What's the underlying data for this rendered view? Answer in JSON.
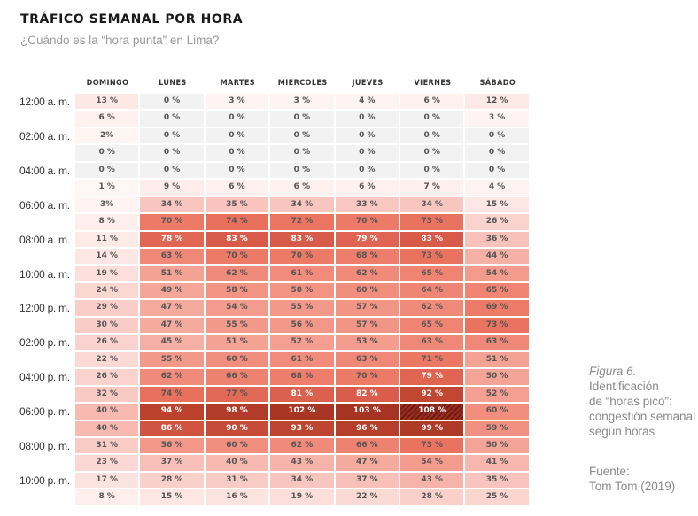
{
  "chart_data": {
    "type": "heatmap",
    "title": "TRÁFICO SEMANAL POR HORA",
    "subtitle": "¿Cuándo es la “hora punta” en Lima?",
    "unit": "%",
    "columns": [
      "DOMINGO",
      "LUNES",
      "MARTES",
      "MIÉRCOLES",
      "JUEVES",
      "VIERNES",
      "SÁBADO"
    ],
    "row_labels": [
      "12:00 a. m.",
      "",
      "02:00 a. m.",
      "",
      "04:00 a. m.",
      "",
      "06:00 a. m.",
      "",
      "08:00 a. m.",
      "",
      "10:00 a. m.",
      "",
      "12:00 p. m.",
      "",
      "02:00 p. m.",
      "",
      "04:00 p. m.",
      "",
      "06:00 p. m.",
      "",
      "08:00 p. m.",
      "",
      "10:00 p. m.",
      ""
    ],
    "hours": [
      0,
      1,
      2,
      3,
      4,
      5,
      6,
      7,
      8,
      9,
      10,
      11,
      12,
      13,
      14,
      15,
      16,
      17,
      18,
      19,
      20,
      21,
      22,
      23
    ],
    "values": [
      [
        13,
        0,
        3,
        3,
        4,
        6,
        12
      ],
      [
        6,
        0,
        0,
        0,
        0,
        0,
        3
      ],
      [
        2,
        0,
        0,
        0,
        0,
        0,
        0
      ],
      [
        0,
        0,
        0,
        0,
        0,
        0,
        0
      ],
      [
        0,
        0,
        0,
        0,
        0,
        0,
        0
      ],
      [
        1,
        9,
        6,
        6,
        6,
        7,
        4
      ],
      [
        3,
        34,
        35,
        34,
        33,
        34,
        15
      ],
      [
        8,
        70,
        74,
        72,
        70,
        73,
        26
      ],
      [
        11,
        78,
        83,
        83,
        79,
        83,
        36
      ],
      [
        14,
        63,
        70,
        70,
        68,
        73,
        44
      ],
      [
        19,
        51,
        62,
        61,
        62,
        65,
        54
      ],
      [
        24,
        49,
        58,
        58,
        60,
        64,
        65
      ],
      [
        29,
        47,
        54,
        55,
        57,
        62,
        69
      ],
      [
        30,
        47,
        55,
        56,
        57,
        65,
        73
      ],
      [
        26,
        45,
        51,
        52,
        53,
        63,
        63
      ],
      [
        22,
        55,
        60,
        61,
        63,
        71,
        51
      ],
      [
        26,
        62,
        66,
        68,
        70,
        79,
        50
      ],
      [
        32,
        74,
        77,
        81,
        82,
        92,
        52
      ],
      [
        40,
        94,
        98,
        102,
        103,
        108,
        60
      ],
      [
        40,
        86,
        90,
        93,
        96,
        99,
        59
      ],
      [
        31,
        56,
        60,
        62,
        66,
        73,
        50
      ],
      [
        23,
        37,
        40,
        43,
        47,
        54,
        41
      ],
      [
        17,
        28,
        31,
        34,
        37,
        43,
        35
      ],
      [
        8,
        15,
        16,
        19,
        22,
        28,
        25
      ]
    ],
    "value_labels_no_space": [
      [
        2,
        0
      ],
      [
        6,
        0
      ]
    ],
    "highlight": {
      "row": 18,
      "col": 5,
      "style": "hatched",
      "label": "108 %"
    },
    "color_scale": {
      "zero": "#f2f2f2",
      "low": "#fff5f4",
      "mid": "#f08a78",
      "high": "#9e2a1c"
    },
    "text_colors": {
      "dark": "#555555",
      "light": "#ffffff"
    }
  },
  "caption": {
    "figure": "Figura 6.",
    "lines": [
      "Identificación",
      "de “horas pico”:",
      "congestión semanal",
      "según horas"
    ],
    "source_label": "Fuente:",
    "source": "Tom Tom (2019)"
  }
}
